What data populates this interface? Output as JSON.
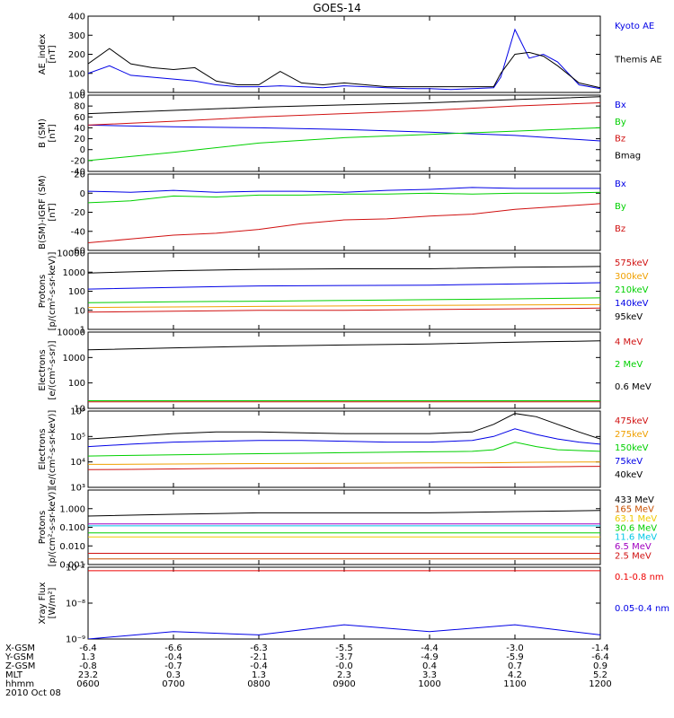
{
  "title": "GOES-14",
  "colors": {
    "black": "#000000",
    "blue": "#0000e6",
    "red": "#d01010",
    "green": "#00d000",
    "orange": "#f0a000",
    "cyan": "#00c8e6",
    "purple": "#a000c0",
    "darkred": "#a00000",
    "brightred": "#ee0000",
    "bright_green": "#00ee00",
    "gold": "#f0c800",
    "brown": "#c85000",
    "lightblue": "#0060ff",
    "yellow": "#e0e000",
    "sky": "#00b0ff"
  },
  "chart_data": [
    {
      "id": "ae",
      "type": "line",
      "ylabel": [
        "AE_index",
        "[nT]"
      ],
      "ylim": [
        0,
        400
      ],
      "scale": "linear",
      "yticks": [
        0,
        100,
        200,
        300,
        400
      ],
      "yticklabels": [
        "0",
        "100",
        "200",
        "300",
        "400"
      ],
      "x": [
        0,
        15,
        30,
        45,
        60,
        75,
        90,
        105,
        120,
        135,
        150,
        165,
        180,
        195,
        210,
        225,
        240,
        255,
        270,
        285,
        290,
        300,
        310,
        320,
        330,
        345,
        360
      ],
      "series": [
        {
          "name": "Kyoto AE",
          "color": "#0000e6",
          "values": [
            100,
            140,
            90,
            80,
            70,
            60,
            40,
            30,
            30,
            35,
            30,
            25,
            35,
            30,
            25,
            20,
            20,
            15,
            20,
            25,
            80,
            330,
            180,
            200,
            160,
            40,
            20
          ]
        },
        {
          "name": "Themis AE",
          "color": "#000000",
          "values": [
            150,
            230,
            150,
            130,
            120,
            130,
            60,
            40,
            40,
            110,
            50,
            40,
            50,
            40,
            30,
            30,
            30,
            30,
            30,
            30,
            100,
            200,
            210,
            190,
            140,
            50,
            25
          ]
        }
      ]
    },
    {
      "id": "bfield",
      "type": "line",
      "ylabel": [
        "B (SM)",
        "[nT]"
      ],
      "ylim": [
        -40,
        100
      ],
      "scale": "linear",
      "yticks": [
        -40,
        -20,
        0,
        20,
        40,
        60,
        80,
        100
      ],
      "yticklabels": [
        "-40",
        "-20",
        "0",
        "20",
        "40",
        "60",
        "80",
        "100"
      ],
      "x": [
        0,
        60,
        120,
        180,
        240,
        300,
        360
      ],
      "series": [
        {
          "name": "Bx",
          "color": "#0000e6",
          "values": [
            45,
            42,
            40,
            37,
            32,
            26,
            16
          ]
        },
        {
          "name": "By",
          "color": "#00d000",
          "values": [
            -20,
            -5,
            12,
            22,
            28,
            34,
            40
          ]
        },
        {
          "name": "Bz",
          "color": "#d01010",
          "values": [
            45,
            52,
            60,
            66,
            72,
            80,
            86
          ]
        },
        {
          "name": "Bmag",
          "color": "#000000",
          "values": [
            66,
            72,
            78,
            82,
            86,
            92,
            97
          ]
        }
      ]
    },
    {
      "id": "bigrf",
      "type": "line",
      "ylabel": [
        "B(SM)-IGRF (SM)",
        "[nT]"
      ],
      "ylim": [
        -60,
        20
      ],
      "scale": "linear",
      "yticks": [
        -60,
        -40,
        -20,
        0,
        20
      ],
      "yticklabels": [
        "-60",
        "-40",
        "-20",
        "0",
        "20"
      ],
      "x": [
        0,
        30,
        60,
        90,
        120,
        150,
        180,
        210,
        240,
        270,
        300,
        330,
        360
      ],
      "series": [
        {
          "name": "Bx",
          "color": "#0000e6",
          "values": [
            2,
            1,
            3,
            1,
            2,
            2,
            1,
            3,
            4,
            6,
            5,
            5,
            5
          ]
        },
        {
          "name": "By",
          "color": "#00d000",
          "values": [
            -10,
            -8,
            -3,
            -4,
            -2,
            -2,
            -1,
            -1,
            0,
            -1,
            0,
            0,
            1
          ]
        },
        {
          "name": "Bz",
          "color": "#d01010",
          "values": [
            -52,
            -48,
            -44,
            -42,
            -38,
            -32,
            -28,
            -27,
            -24,
            -22,
            -17,
            -14,
            -11
          ]
        }
      ]
    },
    {
      "id": "protons_low",
      "type": "line",
      "ylabel": [
        "Protons",
        "[p/(cm²-s-sr-keV)]"
      ],
      "ylim": [
        1,
        10000
      ],
      "scale": "log",
      "yticks": [
        1,
        10,
        100,
        1000,
        10000
      ],
      "yticklabels": [
        "1",
        "10",
        "100",
        "1000",
        "10000"
      ],
      "x": [
        0,
        60,
        120,
        180,
        240,
        300,
        360
      ],
      "series": [
        {
          "name": "575keV",
          "color": "#d01010",
          "values": [
            8,
            9,
            10,
            10,
            11,
            12,
            13
          ]
        },
        {
          "name": "300keV",
          "color": "#f0a000",
          "values": [
            14,
            15,
            16,
            17,
            18,
            19,
            20
          ]
        },
        {
          "name": "210keV",
          "color": "#00d000",
          "values": [
            25,
            28,
            30,
            33,
            36,
            40,
            45
          ]
        },
        {
          "name": "140keV",
          "color": "#0000e6",
          "values": [
            130,
            160,
            190,
            200,
            210,
            240,
            280
          ]
        },
        {
          "name": "95keV",
          "color": "#000000",
          "values": [
            900,
            1200,
            1400,
            1500,
            1500,
            1800,
            2000
          ]
        }
      ]
    },
    {
      "id": "electrons_mev",
      "type": "line",
      "ylabel": [
        "Electrons",
        "[e/(cm²-s-sr)]"
      ],
      "ylim": [
        10,
        10000
      ],
      "scale": "log",
      "yticks": [
        10,
        100,
        1000,
        10000
      ],
      "yticklabels": [
        "10",
        "100",
        "1000",
        "10000"
      ],
      "x": [
        0,
        60,
        120,
        180,
        240,
        300,
        360
      ],
      "series": [
        {
          "name": "4 MeV",
          "color": "#d01010",
          "values": [
            18,
            18,
            18,
            18,
            18,
            18,
            18
          ]
        },
        {
          "name": "2 MeV",
          "color": "#00d000",
          "values": [
            20,
            20,
            20,
            20,
            20,
            20,
            20
          ]
        },
        {
          "name": "0.6 MeV",
          "color": "#000000",
          "values": [
            2000,
            2400,
            2800,
            3100,
            3400,
            4000,
            4500
          ]
        }
      ]
    },
    {
      "id": "electrons_kev",
      "type": "line",
      "ylabel": [
        "Electrons",
        "[e/(cm²-s-sr-keV)]"
      ],
      "ylim": [
        1000,
        1000000
      ],
      "scale": "log",
      "yticks": [
        1000,
        10000,
        100000,
        1000000
      ],
      "yticklabels": [
        "10³",
        "10⁴",
        "10⁵",
        "10⁶"
      ],
      "x": [
        0,
        30,
        60,
        90,
        120,
        150,
        180,
        210,
        240,
        270,
        285,
        300,
        315,
        330,
        345,
        360
      ],
      "series": [
        {
          "name": "475keV",
          "color": "#d01010",
          "values": [
            5000,
            5100,
            5300,
            5500,
            5600,
            5700,
            5800,
            5900,
            6000,
            6100,
            6200,
            6300,
            6400,
            6500,
            6600,
            6700
          ]
        },
        {
          "name": "275keV",
          "color": "#f0a000",
          "values": [
            8000,
            8100,
            8300,
            8500,
            8600,
            8700,
            8800,
            9000,
            9100,
            9200,
            9300,
            9500,
            9700,
            9800,
            9900,
            10000
          ]
        },
        {
          "name": "150keV",
          "color": "#00d000",
          "values": [
            17000,
            18000,
            19000,
            20000,
            21000,
            22000,
            23000,
            24000,
            25000,
            26000,
            30000,
            60000,
            40000,
            30000,
            28000,
            26000
          ]
        },
        {
          "name": "75keV",
          "color": "#0000e6",
          "values": [
            40000,
            50000,
            60000,
            65000,
            70000,
            70000,
            65000,
            60000,
            60000,
            70000,
            100000,
            200000,
            120000,
            80000,
            60000,
            50000
          ]
        },
        {
          "name": "40keV",
          "color": "#000000",
          "values": [
            80000,
            100000,
            130000,
            150000,
            150000,
            140000,
            130000,
            130000,
            130000,
            150000,
            300000,
            800000,
            600000,
            300000,
            150000,
            80000
          ]
        }
      ]
    },
    {
      "id": "protons_mev",
      "type": "line",
      "ylabel": [
        "Protons",
        "[p/(cm²-s-sr-keV)]"
      ],
      "ylim": [
        0.001,
        10
      ],
      "scale": "log",
      "yticks": [
        0.001,
        0.01,
        0.1,
        1.0
      ],
      "yticklabels": [
        "0.001",
        "0.010",
        "0.100",
        "1.000"
      ],
      "x": [
        0,
        60,
        120,
        180,
        240,
        300,
        360
      ],
      "series": [
        {
          "name": "433 MeV",
          "color": "#000000",
          "values": [
            0.4,
            0.5,
            0.6,
            0.6,
            0.6,
            0.7,
            0.8
          ]
        },
        {
          "name": "165 MeV",
          "color": "#c85000",
          "values": [
            0.002,
            0.002,
            0.002,
            0.002,
            0.002,
            0.002,
            0.002
          ]
        },
        {
          "name": "63.1 MeV",
          "color": "#f0c800",
          "values": [
            0.03,
            0.03,
            0.03,
            0.03,
            0.03,
            0.03,
            0.03
          ]
        },
        {
          "name": "30.6 MeV",
          "color": "#00d000",
          "values": [
            0.05,
            0.05,
            0.05,
            0.05,
            0.05,
            0.05,
            0.05
          ]
        },
        {
          "name": "11.6 MeV",
          "color": "#00c8e6",
          "values": [
            0.12,
            0.12,
            0.12,
            0.12,
            0.12,
            0.12,
            0.12
          ]
        },
        {
          "name": "6.5 MeV",
          "color": "#a000c0",
          "values": [
            0.15,
            0.15,
            0.15,
            0.15,
            0.15,
            0.15,
            0.15
          ]
        },
        {
          "name": "2.5 MeV",
          "color": "#d01010",
          "values": [
            0.004,
            0.004,
            0.004,
            0.004,
            0.004,
            0.004,
            0.004
          ]
        }
      ]
    },
    {
      "id": "xray",
      "type": "line",
      "ylabel": [
        "Xray Flux",
        "[W/m²]"
      ],
      "ylim": [
        1e-09,
        1e-07
      ],
      "scale": "log",
      "yticks": [
        1e-09,
        1e-08,
        1e-07
      ],
      "yticklabels": [
        "10⁻⁹",
        "10⁻⁸",
        "10⁻⁷"
      ],
      "x": [
        0,
        60,
        120,
        180,
        240,
        300,
        360
      ],
      "series": [
        {
          "name": "0.1-0.8 nm",
          "color": "#ee0000",
          "values": [
            8e-08,
            8e-08,
            8e-08,
            8e-08,
            8e-08,
            8e-08,
            8e-08
          ]
        },
        {
          "name": "0.05-0.4 nm",
          "color": "#0000e6",
          "values": [
            1e-09,
            1.6e-09,
            1.3e-09,
            2.5e-09,
            1.6e-09,
            2.5e-09,
            1.3e-09
          ]
        }
      ]
    }
  ],
  "ephemeris": {
    "labels": [
      "X-GSM",
      "Y-GSM",
      "Z-GSM",
      "MLT",
      "hhmm"
    ],
    "date": "2010 Oct 08",
    "columns": [
      [
        "-6.4",
        "1.3",
        "-0.8",
        "23.2",
        "0600"
      ],
      [
        "-6.6",
        "-0.4",
        "-0.7",
        "0.3",
        "0700"
      ],
      [
        "-6.3",
        "-2.1",
        "-0.4",
        "1.3",
        "0800"
      ],
      [
        "-5.5",
        "-3.7",
        "-0.0",
        "2.3",
        "0900"
      ],
      [
        "-4.4",
        "-4.9",
        "0.4",
        "3.3",
        "1000"
      ],
      [
        "-3.0",
        "-5.9",
        "0.7",
        "4.2",
        "1100"
      ],
      [
        "-1.4",
        "-6.4",
        "0.9",
        "5.2",
        "1200"
      ]
    ]
  }
}
